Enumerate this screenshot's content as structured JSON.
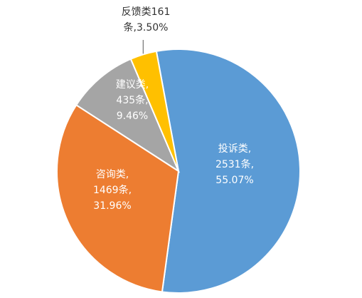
{
  "chart_data": {
    "type": "pie",
    "title": "",
    "start_angle_deg": -10.5,
    "direction": "clockwise",
    "slices": [
      {
        "name": "投诉类",
        "value": 2531,
        "percent": 55.07,
        "label_lines": [
          "投诉类,",
          "2531条,",
          "55.07%"
        ],
        "color": "#5B9BD5",
        "label_color": "#ffffff",
        "label_position": "inside"
      },
      {
        "name": "咨询类",
        "value": 1469,
        "percent": 31.96,
        "label_lines": [
          "咨询类,",
          "1469条,",
          "31.96%"
        ],
        "color": "#ED7D31",
        "label_color": "#ffffff",
        "label_position": "inside"
      },
      {
        "name": "建议类",
        "value": 435,
        "percent": 9.46,
        "label_lines": [
          "建议类,",
          "435条,",
          "9.46%"
        ],
        "color": "#A5A5A5",
        "label_color": "#ffffff",
        "label_position": "inside"
      },
      {
        "name": "反馈类",
        "value": 161,
        "percent": 3.5,
        "label_lines": [
          "反馈类161",
          "条,3.50%"
        ],
        "color": "#FFC000",
        "label_color": "#333333",
        "label_position": "outside"
      }
    ]
  }
}
